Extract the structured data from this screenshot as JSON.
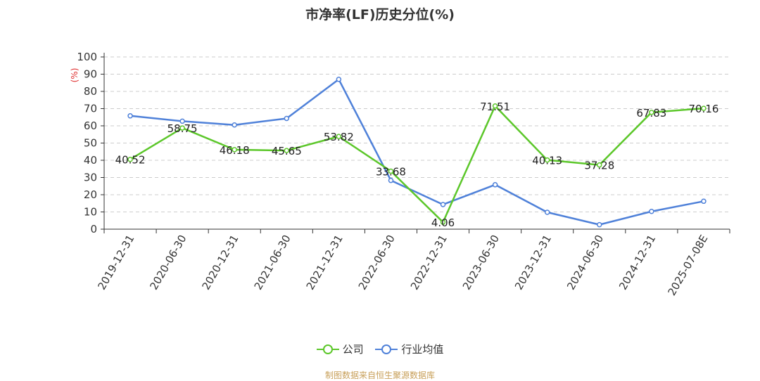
{
  "chart_data": {
    "type": "line",
    "title": "市净率(LF)历史分位(%)",
    "ylabel": "(%)",
    "xlabel": "",
    "ylim": [
      0,
      100
    ],
    "yticks": [
      0,
      10,
      20,
      30,
      40,
      50,
      60,
      70,
      80,
      90,
      100
    ],
    "categories": [
      "2019-12-31",
      "2020-06-30",
      "2020-12-31",
      "2021-06-30",
      "2021-12-31",
      "2022-06-30",
      "2022-12-31",
      "2023-06-30",
      "2023-12-31",
      "2024-06-30",
      "2024-12-31",
      "2025-07-08E"
    ],
    "series": [
      {
        "name": "公司",
        "color": "#5cc72a",
        "values": [
          40.52,
          58.75,
          46.18,
          45.65,
          53.82,
          33.68,
          4.06,
          71.51,
          40.13,
          37.28,
          67.83,
          70.16
        ],
        "labels": [
          "40.52",
          "58.75",
          "46.18",
          "45.65",
          "53.82",
          "33.68",
          "4.06",
          "71.51",
          "40.13",
          "37.28",
          "67.83",
          "70.16"
        ]
      },
      {
        "name": "行业均值",
        "color": "#4f81d9",
        "values": [
          65.8,
          62.7,
          60.5,
          64.3,
          87.0,
          28.3,
          14.3,
          25.8,
          9.8,
          2.6,
          10.3,
          16.2
        ]
      }
    ],
    "grid": true,
    "legend_position": "bottom"
  },
  "footer": {
    "source": "制图数据来自恒生聚源数据库"
  }
}
